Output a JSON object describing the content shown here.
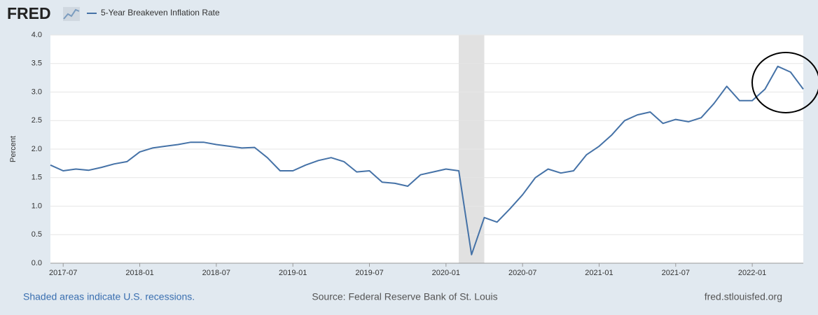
{
  "chart_data": {
    "type": "line",
    "logo": "FRED",
    "y_label": "Percent",
    "x": [
      "2017-06",
      "2017-07",
      "2017-08",
      "2017-09",
      "2017-10",
      "2017-11",
      "2017-12",
      "2018-01",
      "2018-02",
      "2018-03",
      "2018-04",
      "2018-05",
      "2018-06",
      "2018-07",
      "2018-08",
      "2018-09",
      "2018-10",
      "2018-11",
      "2018-12",
      "2019-01",
      "2019-02",
      "2019-03",
      "2019-04",
      "2019-05",
      "2019-06",
      "2019-07",
      "2019-08",
      "2019-09",
      "2019-10",
      "2019-11",
      "2019-12",
      "2020-01",
      "2020-02",
      "2020-03",
      "2020-04",
      "2020-05",
      "2020-06",
      "2020-07",
      "2020-08",
      "2020-09",
      "2020-10",
      "2020-11",
      "2020-12",
      "2021-01",
      "2021-02",
      "2021-03",
      "2021-04",
      "2021-05",
      "2021-06",
      "2021-07",
      "2021-08",
      "2021-09",
      "2021-10",
      "2021-11",
      "2021-12",
      "2022-01",
      "2022-02",
      "2022-03",
      "2022-04",
      "2022-05"
    ],
    "series": [
      {
        "name": "5-Year Breakeven Inflation Rate",
        "color": "#4572a7",
        "values": [
          1.72,
          1.62,
          1.65,
          1.63,
          1.68,
          1.74,
          1.78,
          1.95,
          2.02,
          2.05,
          2.08,
          2.12,
          2.12,
          2.08,
          2.05,
          2.02,
          2.03,
          1.85,
          1.62,
          1.62,
          1.72,
          1.8,
          1.85,
          1.78,
          1.6,
          1.62,
          1.42,
          1.4,
          1.35,
          1.55,
          1.6,
          1.65,
          1.62,
          0.15,
          0.8,
          0.72,
          0.95,
          1.2,
          1.5,
          1.65,
          1.58,
          1.62,
          1.9,
          2.05,
          2.25,
          2.5,
          2.6,
          2.65,
          2.45,
          2.52,
          2.48,
          2.55,
          2.8,
          3.1,
          2.85,
          2.85,
          3.05,
          3.45,
          3.35,
          3.05
        ]
      }
    ],
    "xlim": [
      "2017-06",
      "2022-05"
    ],
    "xticks": [
      "2017-07",
      "2018-01",
      "2018-07",
      "2019-01",
      "2019-07",
      "2020-01",
      "2020-07",
      "2021-01",
      "2021-07",
      "2022-01"
    ],
    "ylim": [
      0,
      4
    ],
    "yticks": [
      {
        "value": 0,
        "label": "0.0"
      },
      0.5,
      {
        "value": 1,
        "label": "1.0"
      },
      1.5,
      {
        "value": 2,
        "label": "2.0"
      },
      2.5,
      {
        "value": 3,
        "label": "3.0"
      },
      3.5,
      {
        "value": 4,
        "label": "4.0"
      }
    ],
    "grid": true,
    "shaded": [
      [
        "2020-02",
        "2020-04"
      ]
    ],
    "shaded_note": "Shaded areas indicate U.S. recessions.",
    "source": "Source: Federal Reserve Bank of St. Louis",
    "url": "fred.stlouisfed.org"
  }
}
